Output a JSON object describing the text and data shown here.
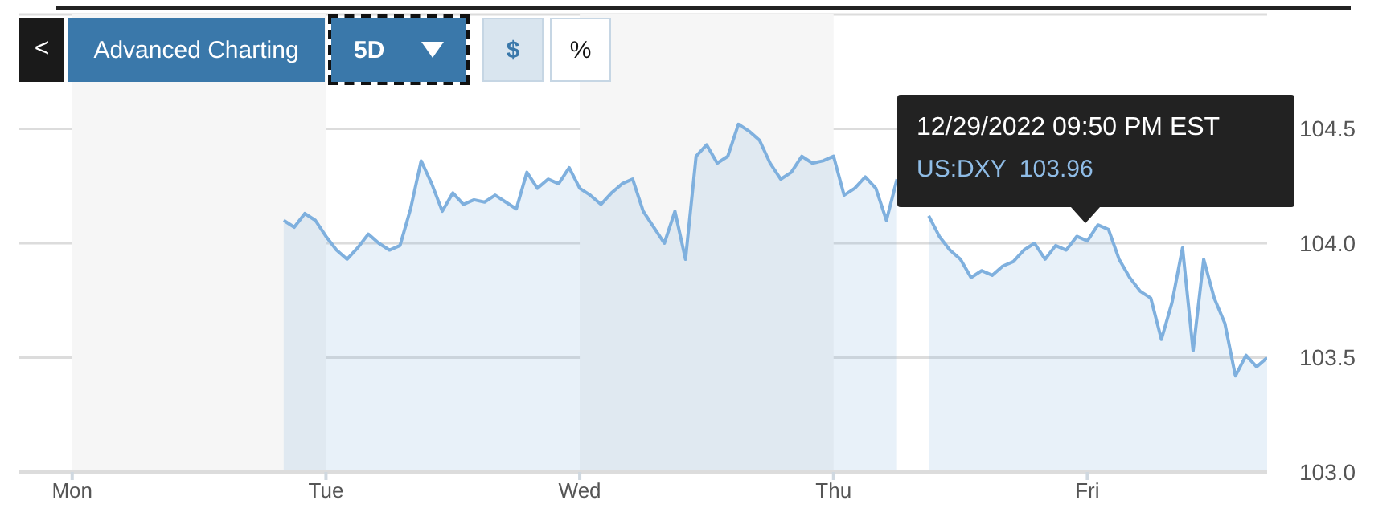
{
  "chart_data": {
    "type": "area",
    "categories": [
      null,
      null,
      null,
      null,
      null,
      "Mon",
      null,
      null,
      null,
      null,
      null,
      null,
      null,
      null,
      null,
      null,
      null,
      null,
      null,
      null,
      null,
      null,
      null,
      null,
      null,
      null,
      null,
      null,
      null,
      "Tue",
      null,
      null,
      null,
      null,
      null,
      null,
      null,
      null,
      null,
      null,
      null,
      null,
      null,
      null,
      null,
      null,
      null,
      null,
      null,
      null,
      null,
      null,
      null,
      "Wed",
      null,
      null,
      null,
      null,
      null,
      null,
      null,
      null,
      null,
      null,
      null,
      null,
      null,
      null,
      null,
      null,
      null,
      null,
      null,
      null,
      null,
      null,
      null,
      "Thu",
      null,
      null,
      null,
      null,
      null,
      null,
      null,
      null,
      null,
      null,
      null,
      null,
      null,
      null,
      null,
      null,
      null,
      null,
      null,
      null,
      null,
      null,
      null,
      "Fri",
      null,
      null,
      null,
      null,
      null,
      null,
      null,
      null,
      null,
      null,
      null,
      null,
      null,
      null,
      null,
      null,
      null
    ],
    "series": [
      {
        "color": "#7fb0de",
        "values": [
          null,
          null,
          null,
          null,
          null,
          null,
          null,
          null,
          null,
          null,
          null,
          null,
          null,
          null,
          null,
          null,
          null,
          null,
          null,
          null,
          null,
          null,
          null,
          null,
          null,
          104.1,
          104.07,
          104.13,
          104.1,
          104.03,
          103.97,
          103.93,
          103.98,
          104.04,
          104.0,
          103.97,
          103.99,
          104.15,
          104.36,
          104.26,
          104.14,
          104.22,
          104.17,
          104.19,
          104.18,
          104.21,
          104.18,
          104.15,
          104.31,
          104.24,
          104.28,
          104.26,
          104.33,
          104.24,
          104.21,
          104.17,
          104.22,
          104.26,
          104.28,
          104.14,
          104.07,
          104.0,
          104.14,
          103.93,
          104.38,
          104.43,
          104.35,
          104.38,
          104.52,
          104.49,
          104.45,
          104.35,
          104.28,
          104.31,
          104.38,
          104.35,
          104.36,
          104.38,
          104.21,
          104.24,
          104.29,
          104.24,
          104.1,
          104.28,
          null,
          null,
          104.12,
          104.03,
          103.97,
          103.93,
          103.85,
          103.88,
          103.86,
          103.9,
          103.92,
          103.97,
          104.0,
          103.93,
          103.99,
          103.97,
          104.03,
          104.01,
          104.08,
          104.06,
          103.93,
          103.85,
          103.79,
          103.76,
          103.58,
          103.74,
          103.98,
          103.53,
          103.93,
          103.76,
          103.65,
          103.42,
          103.51,
          103.46,
          103.5
        ]
      }
    ],
    "ylim": [
      103,
      105
    ],
    "yticks": [
      {
        "value": 103,
        "label": "103.0"
      },
      {
        "value": 103.5,
        "label": "103.5"
      },
      {
        "value": 104,
        "label": "104.0"
      },
      {
        "value": 104.5,
        "label": "104.5"
      }
    ],
    "grid": "y",
    "legend": false,
    "marker": "none",
    "line_style": "solid",
    "bands": [
      {
        "axis": "x",
        "from": "Mon",
        "to": "Tue",
        "color": "#f6f6f6"
      },
      {
        "axis": "x",
        "from": "Wed",
        "to": "Thu",
        "color": "#f6f6f6"
      }
    ],
    "annotations": [
      "<",
      "Advanced Charting",
      "5D",
      "$",
      "%",
      "12/29/2022 09:50 PM EST",
      "US:DXY  103.96"
    ]
  }
}
